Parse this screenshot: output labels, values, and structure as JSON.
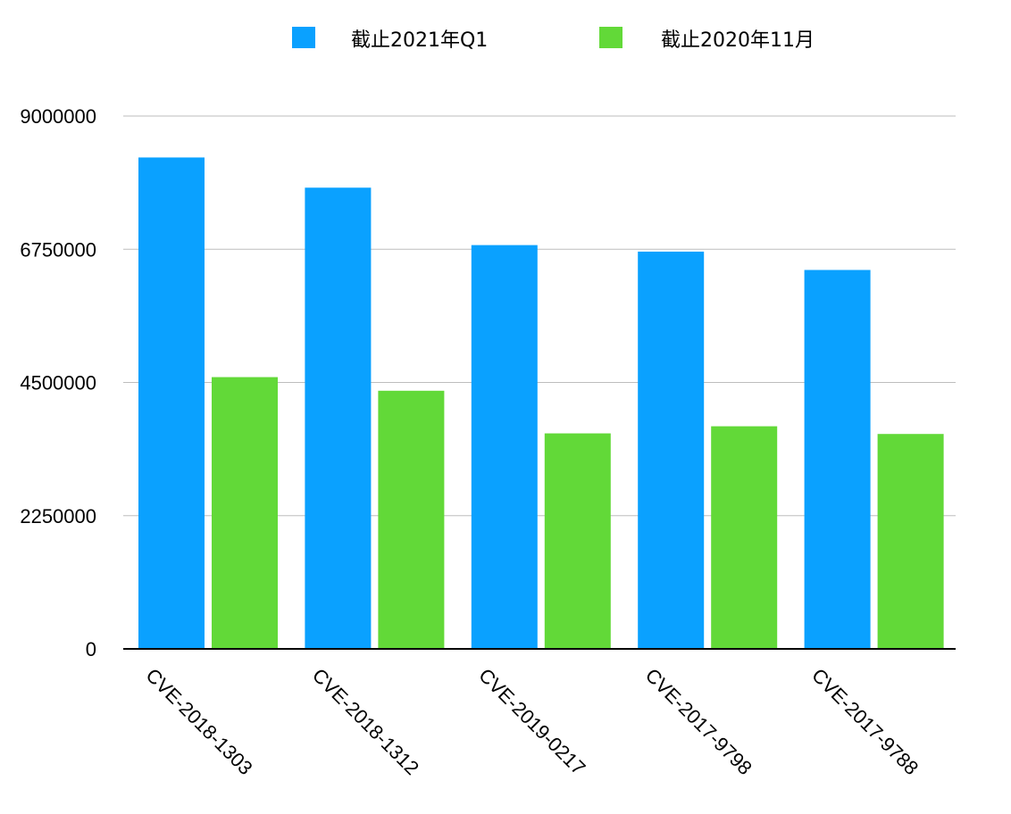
{
  "chart_data": {
    "type": "bar",
    "title": "",
    "xlabel": "",
    "ylabel": "",
    "categories": [
      "CVE-2018-1303",
      "CVE-2018-1312",
      "CVE-2019-0217",
      "CVE-2017-9798",
      "CVE-2017-9788"
    ],
    "series": [
      {
        "name": "截止2021年Q1",
        "color": "#0aa1ff",
        "values": [
          8300000,
          7790000,
          6820000,
          6710000,
          6400000
        ]
      },
      {
        "name": "截止2020年11月",
        "color": "#62d938",
        "values": [
          4590000,
          4360000,
          3640000,
          3760000,
          3630000
        ]
      }
    ],
    "ylim": [
      0,
      9000000
    ],
    "yticks": [
      "0",
      "2250000",
      "4500000",
      "6750000",
      "9000000"
    ],
    "grid": true,
    "legend_position": "top-center"
  }
}
